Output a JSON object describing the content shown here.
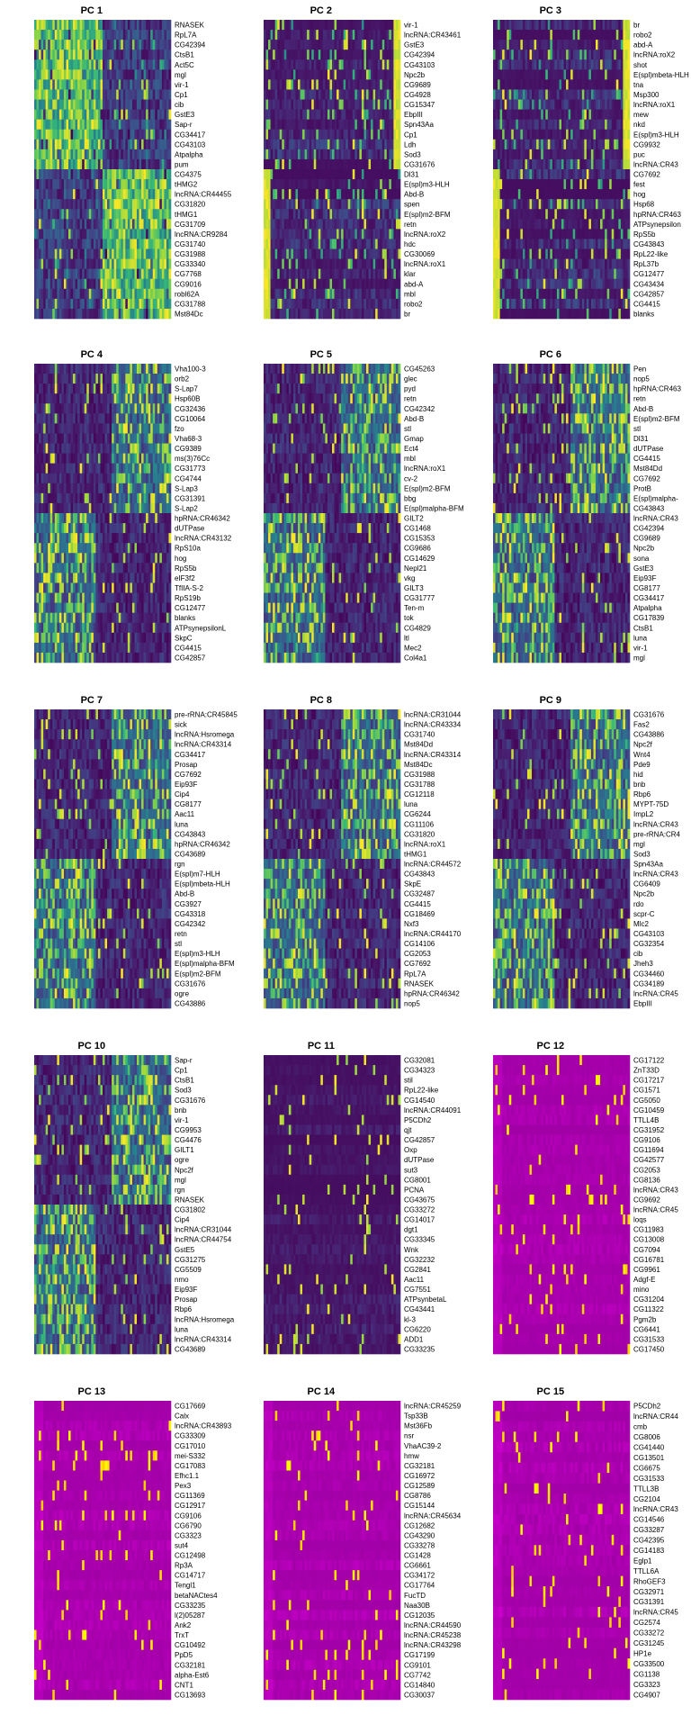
{
  "chart_data": {
    "type": "heatmap",
    "colors": {
      "low": "#440154",
      "mid": "#7a0f8a",
      "high": "#ffff00",
      "magenta": "#c000c0"
    },
    "panels": [
      {
        "title": "PC 1",
        "style": "split",
        "genes": [
          "RNASEK",
          "RpL7A",
          "CG42394",
          "CtsB1",
          "Act5C",
          "mgl",
          "vir-1",
          "Cp1",
          "cib",
          "GstE3",
          "Sap-r",
          "CG34417",
          "CG43103",
          "Atpalpha",
          "pum",
          "CG4375",
          "tHMG2",
          "lncRNA:CR44455",
          "CG31820",
          "tHMG1",
          "CG31709",
          "lncRNA:CR9284",
          "CG31740",
          "CG31988",
          "CG33340",
          "CG7768",
          "CG9016",
          "robl62A",
          "CG31788",
          "Mst84Dc"
        ]
      },
      {
        "title": "PC 2",
        "style": "edge",
        "genes": [
          "vir-1",
          "lncRNA:CR43461",
          "GstE3",
          "CG42394",
          "CG43103",
          "Npc2b",
          "CG9689",
          "CG4928",
          "CG15347",
          "EbpIII",
          "Spn43Aa",
          "Cp1",
          "Ldh",
          "Sod3",
          "CG31676",
          "Dl31",
          "E(spl)m3-HLH",
          "Abd-B",
          "spen",
          "E(spl)m2-BFM",
          "retn",
          "lncRNA:roX2",
          "hdc",
          "CG30069",
          "lncRNA:roX1",
          "klar",
          "abd-A",
          "mbl",
          "robo2",
          "br"
        ]
      },
      {
        "title": "PC 3",
        "style": "edge",
        "genes": [
          "br",
          "robo2",
          "abd-A",
          "lncRNA:roX2",
          "shot",
          "E(spl)mbeta-HLH",
          "tna",
          "Msp300",
          "lncRNA:roX1",
          "mew",
          "nkd",
          "E(spl)m3-HLH",
          "CG9932",
          "puc",
          "lncRNA:CR43",
          "CG7692",
          "fest",
          "hog",
          "Hsp68",
          "hpRNA:CR463",
          "ATPsynepsilon",
          "RpS5b",
          "CG43843",
          "RpL22-like",
          "RpL37b",
          "CG12477",
          "CG43434",
          "CG42857",
          "CG4415",
          "blanks"
        ]
      },
      {
        "title": "PC 4",
        "style": "mixed",
        "genes": [
          "Vha100-3",
          "orb2",
          "S-Lap7",
          "Hsp60B",
          "CG32436",
          "CG10064",
          "fzo",
          "Vha68-3",
          "CG9389",
          "ms(3)76Cc",
          "CG31773",
          "CG4744",
          "S-Lap3",
          "CG31391",
          "S-Lap2",
          "hpRNA:CR46342",
          "dUTPase",
          "lncRNA:CR43132",
          "RpS10a",
          "hog",
          "RpS5b",
          "eIF3f2",
          "TfIIA-S-2",
          "RpS19b",
          "CG12477",
          "blanks",
          "ATPsynepsilonL",
          "SkpC",
          "CG4415",
          "CG42857"
        ]
      },
      {
        "title": "PC 5",
        "style": "mixed",
        "genes": [
          "CG45263",
          "glec",
          "pyd",
          "retn",
          "CG42342",
          "Abd-B",
          "stl",
          "Gmap",
          "Ect4",
          "mbl",
          "lncRNA:roX1",
          "cv-2",
          "E(spl)m2-BFM",
          "bbg",
          "E(spl)malpha-BFM",
          "GILT2",
          "CG1468",
          "CG15353",
          "CG9686",
          "CG14629",
          "Nepl21",
          "vkg",
          "GILT3",
          "CG31777",
          "Ten-m",
          "tok",
          "CG4829",
          "ltl",
          "Mec2",
          "Col4a1"
        ]
      },
      {
        "title": "PC 6",
        "style": "mixed",
        "genes": [
          "Pen",
          "nop5",
          "hpRNA:CR463",
          "retn",
          "Abd-B",
          "E(spl)m2-BFM",
          "stl",
          "Dl31",
          "dUTPase",
          "CG4415",
          "Mst84Dd",
          "CG7692",
          "ProtB",
          "E(spl)malpha-",
          "CG43843",
          "lncRNA:CR43",
          "CG42394",
          "CG9689",
          "Npc2b",
          "sona",
          "GstE3",
          "Eip93F",
          "CG8177",
          "CG34417",
          "Atpalpha",
          "CG17839",
          "CtsB1",
          "luna",
          "vir-1",
          "mgl"
        ]
      },
      {
        "title": "PC 7",
        "style": "mixed",
        "genes": [
          "pre-rRNA:CR45845",
          "sick",
          "lncRNA:Hsromega",
          "lncRNA:CR43314",
          "CG34417",
          "Prosap",
          "CG7692",
          "Eip93F",
          "Cip4",
          "CG8177",
          "Aac11",
          "luna",
          "CG43843",
          "hpRNA:CR46342",
          "CG43689",
          "rgn",
          "E(spl)m7-HLH",
          "E(spl)mbeta-HLH",
          "Abd-B",
          "CG3927",
          "CG43318",
          "CG42342",
          "retn",
          "stl",
          "E(spl)m3-HLH",
          "E(spl)malpha-BFM",
          "E(spl)m2-BFM",
          "CG31676",
          "ogre",
          "CG43886"
        ]
      },
      {
        "title": "PC 8",
        "style": "mixed",
        "genes": [
          "lncRNA:CR31044",
          "lncRNA:CR43334",
          "CG31740",
          "Mst84Dd",
          "lncRNA:CR43314",
          "Mst84Dc",
          "CG31988",
          "CG31788",
          "CG12118",
          "luna",
          "CG6244",
          "CG11106",
          "CG31820",
          "lncRNA:roX1",
          "tHMG1",
          "lncRNA:CR44572",
          "CG43843",
          "SkpE",
          "CG32487",
          "CG4415",
          "CG18469",
          "Nxf3",
          "lncRNA:CR44170",
          "CG14106",
          "CG2053",
          "CG7692",
          "RpL7A",
          "RNASEK",
          "hpRNA:CR46342",
          "nop5"
        ]
      },
      {
        "title": "PC 9",
        "style": "mixed",
        "genes": [
          "CG31676",
          "Fas2",
          "CG43886",
          "Npc2f",
          "Wnt4",
          "Pde9",
          "hid",
          "bnb",
          "Rbp6",
          "MYPT-75D",
          "ImpL2",
          "lncRNA:CR43",
          "pre-rRNA:CR4",
          "mgl",
          "Sod3",
          "Spn43Aa",
          "lncRNA:CR43",
          "CG6409",
          "Npc2b",
          "rdo",
          "scpr-C",
          "Mlc2",
          "CG43103",
          "CG32354",
          "cib",
          "Jheh3",
          "CG34460",
          "CG34189",
          "lncRNA:CR45",
          "EbpIII"
        ]
      },
      {
        "title": "PC 10",
        "style": "mixed",
        "genes": [
          "Sap-r",
          "Cp1",
          "CtsB1",
          "Sod3",
          "CG31676",
          "bnb",
          "vir-1",
          "CG9953",
          "CG4476",
          "GILT1",
          "ogre",
          "Npc2f",
          "mgl",
          "rgn",
          "RNASEK",
          "CG31802",
          "Cip4",
          "lncRNA:CR31044",
          "lncRNA:CR44754",
          "GstE5",
          "CG31275",
          "CG5509",
          "nmo",
          "Eip93F",
          "Prosap",
          "Rbp6",
          "lncRNA:Hsromega",
          "luna",
          "lncRNA:CR43314",
          "CG43689"
        ]
      },
      {
        "title": "PC 11",
        "style": "dark",
        "genes": [
          "CG32081",
          "CG34323",
          "stil",
          "RpL22-like",
          "CG14540",
          "lncRNA:CR44091",
          "P5CDh2",
          "qjt",
          "CG42857",
          "Oxp",
          "dUTPase",
          "sut3",
          "CG8001",
          "PCNA",
          "CG43675",
          "CG33272",
          "CG14017",
          "dgt1",
          "CG33345",
          "Wnk",
          "CG32232",
          "CG2841",
          "Aac11",
          "CG7551",
          "ATPsynbetaL",
          "CG43441",
          "kl-3",
          "CG6220",
          "ADD1",
          "CG33235"
        ]
      },
      {
        "title": "PC 12",
        "style": "magenta",
        "genes": [
          "CG17122",
          "ZnT33D",
          "CG17217",
          "CG1571",
          "CG5050",
          "CG10459",
          "TTLL4B",
          "CG31952",
          "CG9106",
          "CG11694",
          "CG42577",
          "CG2053",
          "CG8136",
          "lncRNA:CR43",
          "CG9692",
          "lncRNA:CR45",
          "loqs",
          "CG11983",
          "CG13008",
          "CG7094",
          "CG16781",
          "CG9961",
          "Adgf-E",
          "mino",
          "CG31204",
          "CG11322",
          "Pgm2b",
          "CG6441",
          "CG31533",
          "CG17450"
        ]
      },
      {
        "title": "PC 13",
        "style": "magenta",
        "genes": [
          "CG17669",
          "Calx",
          "lncRNA:CR43893",
          "CG33309",
          "CG17010",
          "mei-S332",
          "CG17083",
          "Efhc1.1",
          "Pex3",
          "CG11369",
          "CG12917",
          "CG9106",
          "CG6790",
          "CG3323",
          "sut4",
          "CG12498",
          "Rp3A",
          "CG14717",
          "Tengl1",
          "betaNACtes4",
          "CG33235",
          "l(2)05287",
          "Ank2",
          "TrxT",
          "CG10492",
          "PpD5",
          "CG32181",
          "alpha-Est6",
          "CNT1",
          "CG13693"
        ]
      },
      {
        "title": "PC 14",
        "style": "magenta",
        "genes": [
          "lncRNA:CR45259",
          "Tsp33B",
          "Mst36Fb",
          "nsr",
          "VhaAC39-2",
          "hmw",
          "CG32181",
          "CG16972",
          "CG12589",
          "CG8786",
          "CG15144",
          "lncRNA:CR45634",
          "CG12682",
          "CG43290",
          "CG33278",
          "CG1428",
          "CG6661",
          "CG34172",
          "CG17764",
          "FucTD",
          "Naa30B",
          "CG12035",
          "lncRNA:CR44590",
          "lncRNA:CR45238",
          "lncRNA:CR43298",
          "CG17199",
          "CG9101",
          "CG7742",
          "CG14840",
          "CG30037"
        ]
      },
      {
        "title": "PC 15",
        "style": "magenta",
        "genes": [
          "P5CDh2",
          "lncRNA:CR44",
          "cmb",
          "CG8006",
          "CG41440",
          "CG13501",
          "CG6675",
          "CG31533",
          "TTLL3B",
          "CG2104",
          "lncRNA:CR43",
          "CG14546",
          "CG33287",
          "CG42395",
          "CG14183",
          "Eglp1",
          "TTLL6A",
          "RhoGEF3",
          "CG32971",
          "CG31391",
          "lncRNA:CR45",
          "CG2574",
          "CG33272",
          "CG31245",
          "HP1e",
          "CG33500",
          "CG1138",
          "CG3323",
          "CG4907"
        ]
      }
    ]
  }
}
